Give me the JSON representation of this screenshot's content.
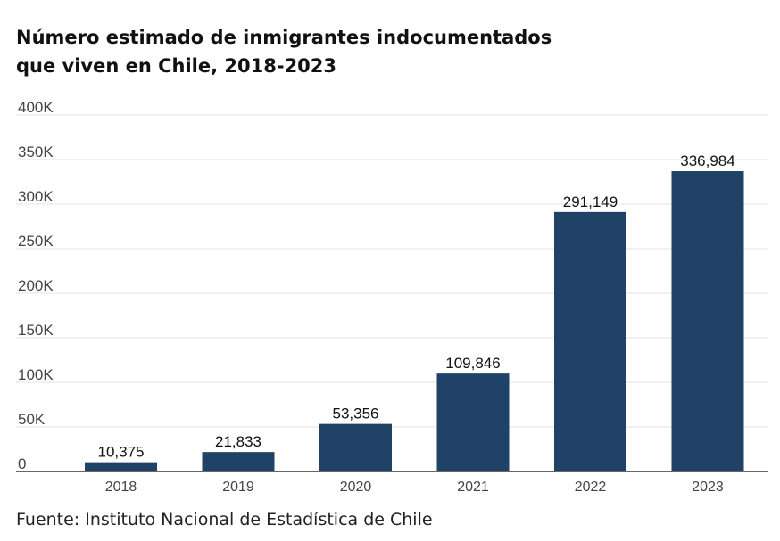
{
  "title_line1": "Número estimado de inmigrantes indocumentados",
  "title_line2": "que viven en Chile, 2018-2023",
  "source": "Fuente: Instituto Nacional de Estadística de Chile",
  "colors": {
    "bar": "#1f4266",
    "grid": "#e3e3e3",
    "axis": "#333333",
    "text": "#111111"
  },
  "chart_data": {
    "type": "bar",
    "title": "Número estimado de inmigrantes indocumentados que viven en Chile, 2018-2023",
    "categories": [
      "2018",
      "2019",
      "2020",
      "2021",
      "2022",
      "2023"
    ],
    "values": [
      10375,
      21833,
      53356,
      109846,
      291149,
      336984
    ],
    "data_labels": [
      "10,375",
      "21,833",
      "53,356",
      "109,846",
      "291,149",
      "336,984"
    ],
    "ylim": [
      0,
      400000
    ],
    "y_ticks": [
      0,
      50000,
      100000,
      150000,
      200000,
      250000,
      300000,
      350000,
      400000
    ],
    "y_tick_labels": [
      "0",
      "50K",
      "100K",
      "150K",
      "200K",
      "250K",
      "300K",
      "350K",
      "400K"
    ],
    "grid": true,
    "xlabel": "",
    "ylabel": ""
  }
}
